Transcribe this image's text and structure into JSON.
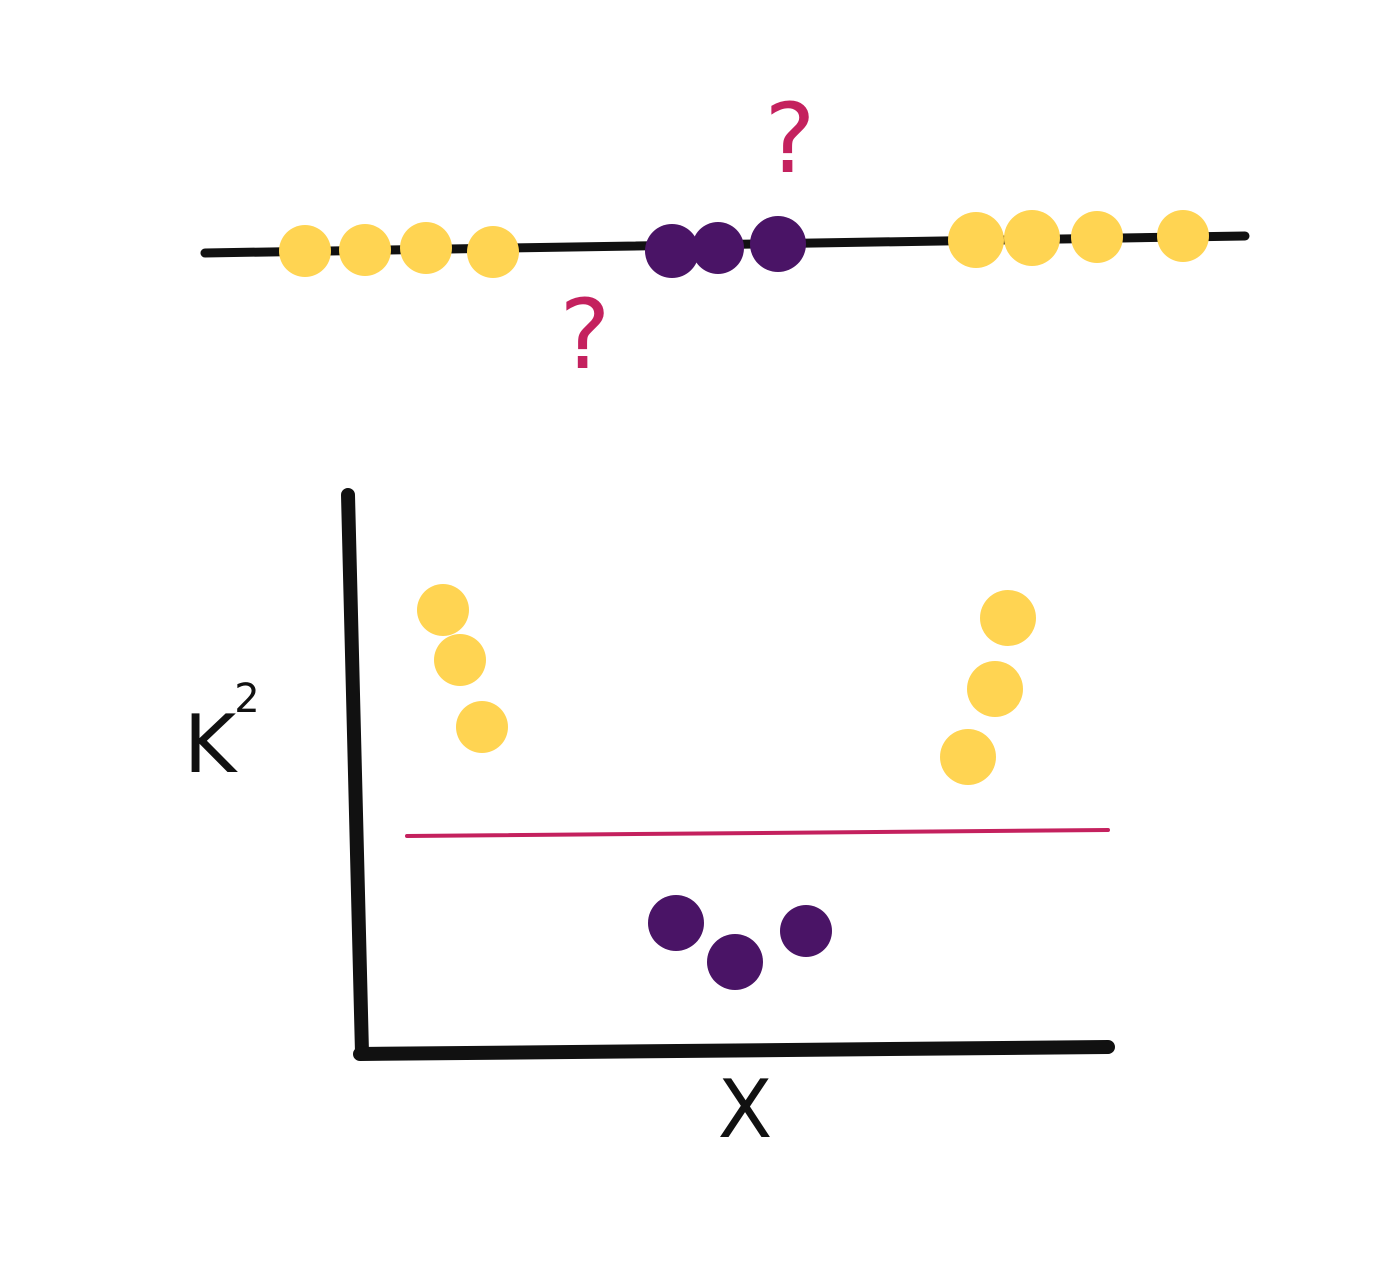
{
  "colors": {
    "yellow": "#FFD452",
    "purple": "#4A1466",
    "accent": "#C4215E",
    "ink": "#111111"
  },
  "top_diagram": {
    "question_mark_upper": "?",
    "question_mark_lower": "?"
  },
  "bottom_plot": {
    "y_label": "K",
    "y_label_superscript": "2",
    "x_label": "X"
  }
}
